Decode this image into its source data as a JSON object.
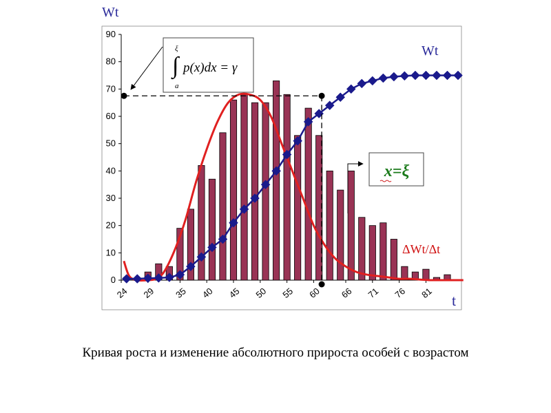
{
  "caption": "Кривая роста и изменение абсолютного прироста особей с возрастом",
  "chart_data": {
    "type": "bar",
    "y_axis_label": "Wt",
    "x_axis_label": "t",
    "ylim": [
      0,
      90
    ],
    "y_ticks": [
      0,
      10,
      20,
      30,
      40,
      50,
      60,
      70,
      80,
      90
    ],
    "x_tick_labels": [
      "24",
      "29",
      "35",
      "40",
      "45",
      "50",
      "55",
      "60",
      "66",
      "71",
      "76",
      "81"
    ],
    "xlim": [
      24,
      87
    ],
    "grid": false,
    "colors": {
      "bars": "#993355",
      "bar_edge": "#000000",
      "density_curve": "#e02020",
      "cumulative_curve": "#1a1a8c"
    },
    "bars": {
      "x": [
        25,
        27,
        29,
        31,
        33,
        35,
        37,
        39,
        41,
        43,
        45,
        47,
        49,
        51,
        53,
        55,
        57,
        59,
        61,
        63,
        65,
        67,
        69,
        71,
        73,
        75,
        77,
        79,
        81,
        83,
        85
      ],
      "values": [
        1,
        0,
        3,
        6,
        5,
        19,
        26,
        42,
        37,
        54,
        66,
        68,
        65,
        65,
        73,
        68,
        53,
        63,
        53,
        40,
        33,
        40,
        23,
        20,
        21,
        15,
        5,
        3,
        4,
        1,
        2
      ]
    },
    "series": [
      {
        "name": "Wt",
        "type": "line-markers",
        "x": [
          25,
          27,
          29,
          31,
          33,
          35,
          37,
          39,
          41,
          43,
          45,
          47,
          49,
          51,
          53,
          55,
          57,
          59,
          61,
          63,
          65,
          67,
          69,
          71,
          73,
          75,
          77,
          79,
          81,
          83,
          85,
          87
        ],
        "values": [
          0.5,
          0.5,
          0.7,
          0.8,
          1,
          2,
          5,
          8.5,
          12,
          15,
          21,
          26,
          30,
          35,
          40,
          46,
          51,
          58,
          61,
          64,
          67,
          70,
          72,
          73,
          74,
          74.5,
          74.8,
          75,
          75,
          75,
          75,
          75
        ]
      },
      {
        "name": "ΔWt/Δt",
        "type": "line",
        "x": [
          24.5,
          25.5,
          27,
          29,
          30.5,
          32,
          34,
          36,
          38,
          40,
          42,
          44,
          46,
          48,
          50,
          52,
          54,
          56,
          58,
          60,
          62,
          64,
          66,
          68,
          70,
          72,
          74,
          76,
          78,
          80,
          82,
          84,
          86,
          88
        ],
        "values": [
          7,
          1.5,
          0,
          0,
          0.5,
          3,
          11,
          22,
          36,
          48,
          58,
          65,
          68,
          68,
          66,
          60,
          50,
          40,
          30,
          20,
          13,
          8,
          5,
          3,
          2,
          1.5,
          1,
          0.5,
          0.5,
          0.2,
          0,
          0,
          0,
          0
        ]
      }
    ],
    "annotations": [
      {
        "text": "x=ξ",
        "x": 61.5
      },
      {
        "text": "∫ₐ^ξ p(x)dx = γ",
        "y": 67.5
      }
    ]
  }
}
